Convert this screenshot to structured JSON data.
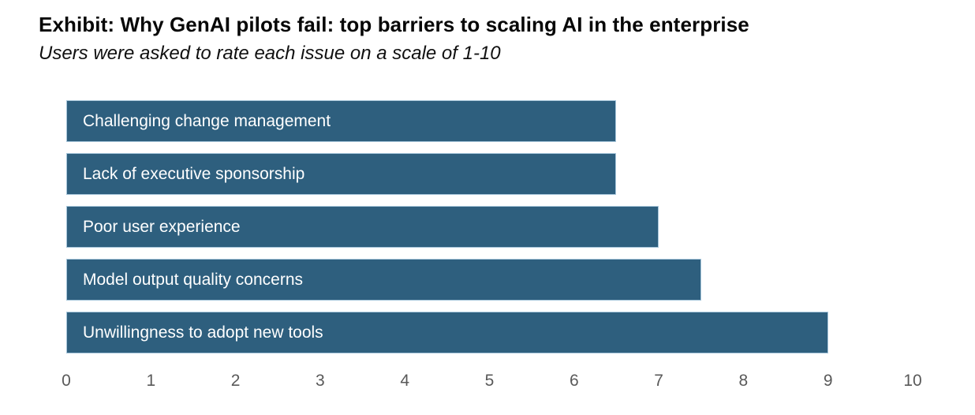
{
  "header": {
    "title": "Exhibit: Why GenAI pilots fail: top barriers to scaling AI in the enterprise",
    "subtitle": "Users were asked to rate each issue on a scale of 1-10"
  },
  "chart_data": {
    "type": "bar",
    "orientation": "horizontal",
    "title": "Exhibit: Why GenAI pilots fail: top barriers to scaling AI in the enterprise",
    "subtitle": "Users were asked to rate each issue on a scale of 1-10",
    "categories": [
      "Challenging change management",
      "Lack of executive sponsorship",
      "Poor user experience",
      "Model output quality concerns",
      "Unwillingness to adopt new tools"
    ],
    "values": [
      6.5,
      6.5,
      7,
      7.5,
      9
    ],
    "xlabel": "",
    "ylabel": "",
    "xlim": [
      0,
      10
    ],
    "x_ticks": [
      0,
      1,
      2,
      3,
      4,
      5,
      6,
      7,
      8,
      9,
      10
    ],
    "grid": false,
    "legend": false,
    "bar_color": "#2E5F7E",
    "bar_border_color": "#A7C6DB",
    "bar_label_color": "#FFFFFF",
    "tick_color": "#595959"
  }
}
